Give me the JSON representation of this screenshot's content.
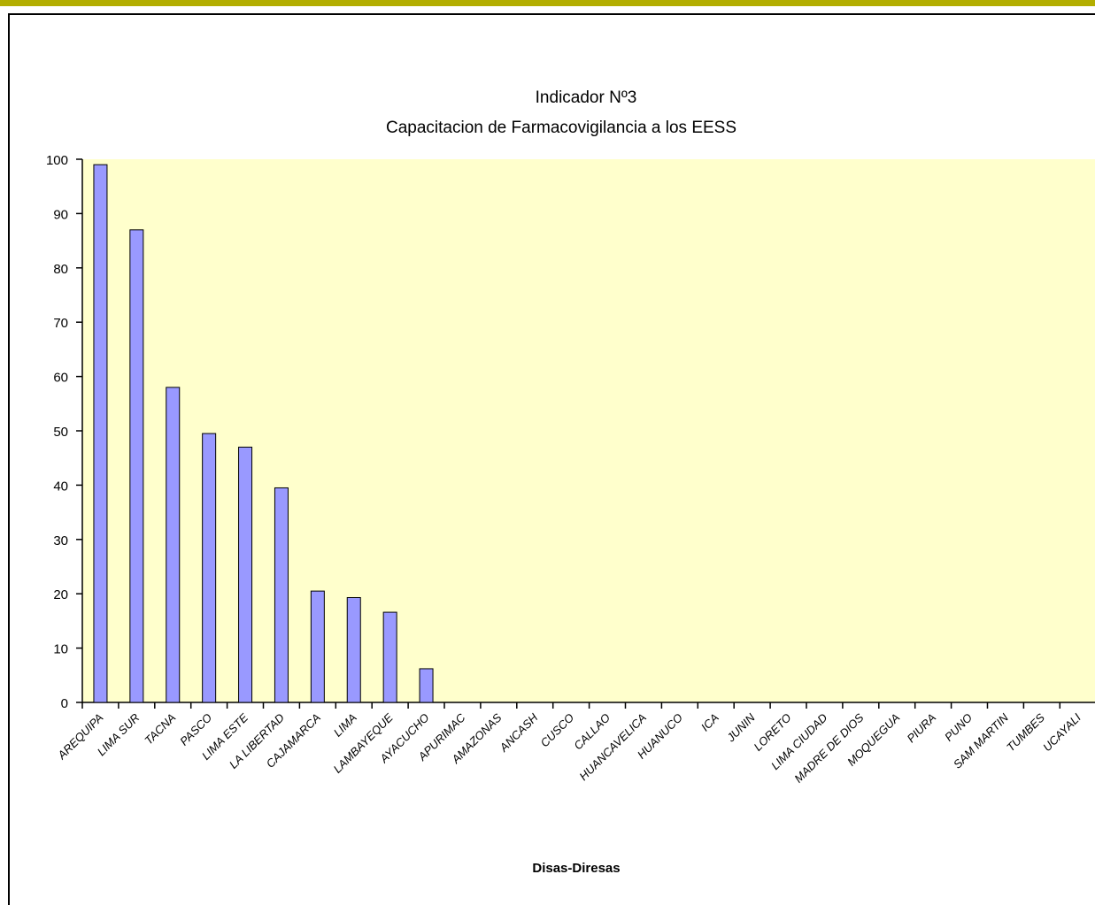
{
  "colors": {
    "top_band": "#B3AE00",
    "plot_area": "#FFFFCC",
    "bar_fill": "#9999FF",
    "bar_stroke": "#000000",
    "frame": "#000000"
  },
  "chart_data": {
    "type": "bar",
    "title": "Indicador Nº3",
    "subtitle": "Capacitacion de Farmacovigilancia a los EESS",
    "xlabel": "Disas-Diresas",
    "ylabel": "",
    "ylim": [
      0,
      100
    ],
    "yticks": [
      0,
      10,
      20,
      30,
      40,
      50,
      60,
      70,
      80,
      90,
      100
    ],
    "grid": false,
    "legend": "none",
    "categories": [
      "AREQUIPA",
      "LIMA SUR",
      "TACNA",
      "PASCO",
      "LIMA ESTE",
      "LA LIBERTAD",
      "CAJAMARCA",
      "LIMA",
      "LAMBAYEQUE",
      "AYACUCHO",
      "APURIMAC",
      "AMAZONAS",
      "ANCASH",
      "CUSCO",
      "CALLAO",
      "HUANCAVELICA",
      "HUANUCO",
      "ICA",
      "JUNIN",
      "LORETO",
      "LIMA CIUDAD",
      "MADRE DE DIOS",
      "MOQUEGUA",
      "PIURA",
      "PUNO",
      "SAM MARTIN",
      "TUMBES",
      "UCAYALI"
    ],
    "values": [
      99,
      87,
      58,
      49.5,
      47,
      39.5,
      20.5,
      19.3,
      16.6,
      6.2,
      0,
      0,
      0,
      0,
      0,
      0,
      0,
      0,
      0,
      0,
      0,
      0,
      0,
      0,
      0,
      0,
      0,
      0
    ]
  }
}
